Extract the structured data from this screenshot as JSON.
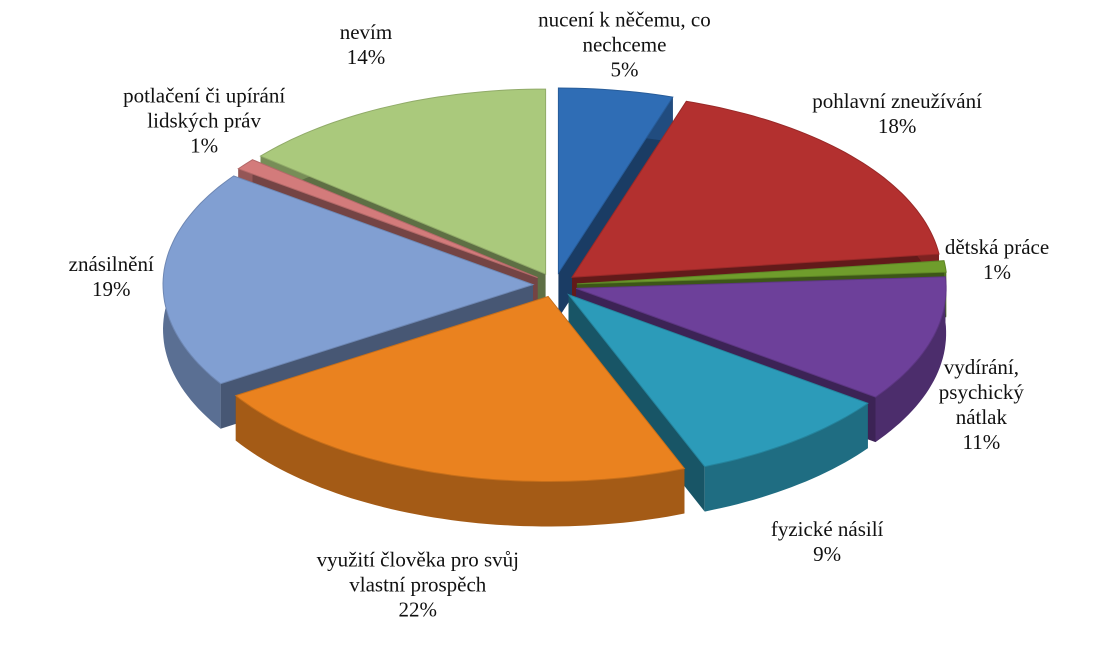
{
  "chart_data": {
    "type": "pie",
    "categories": [
      "nucení k něčemu, co nechceme",
      "pohlavní zneužívání",
      "dětská práce",
      "vydírání, psychický nátlak",
      "fyzické násilí",
      "využití člověka pro svůj vlastní prospěch",
      "znásilnění",
      "potlačení či upírání lidských práv",
      "nevím"
    ],
    "values": [
      5,
      18,
      1,
      11,
      9,
      22,
      19,
      1,
      14
    ],
    "value_labels": [
      "5%",
      "18%",
      "1%",
      "11%",
      "9%",
      "22%",
      "19%",
      "1%",
      "14%"
    ],
    "colors": [
      "#2f6db5",
      "#b3302f",
      "#6f9d2c",
      "#6d409a",
      "#2c9bb9",
      "#ea821f",
      "#819fd2",
      "#d37b7b",
      "#aac97c"
    ]
  }
}
